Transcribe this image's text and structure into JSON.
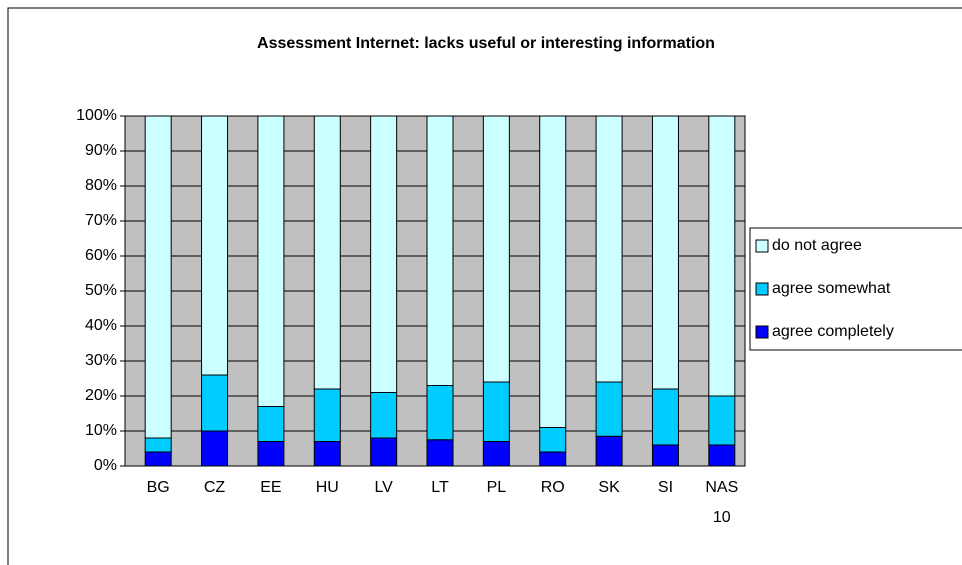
{
  "chart_data": {
    "type": "stacked_bar",
    "title": "Assessment Internet: lacks useful or interesting information",
    "categories": [
      "BG",
      "CZ",
      "EE",
      "HU",
      "LV",
      "LT",
      "PL",
      "RO",
      "SK",
      "SI",
      "NAS 10"
    ],
    "series": [
      {
        "name": "agree completely",
        "color": "#0000ff",
        "values": [
          4,
          10,
          7,
          7,
          8,
          7.5,
          7,
          4,
          8.5,
          6,
          6
        ]
      },
      {
        "name": "agree somewhat",
        "color": "#00ccff",
        "values": [
          4,
          16,
          10,
          15,
          13,
          15.5,
          17,
          7,
          15.5,
          16,
          14
        ]
      },
      {
        "name": "do not agree",
        "color": "#ccffff",
        "values": [
          92,
          74,
          83,
          78,
          79,
          77,
          76,
          89,
          76,
          78,
          80
        ]
      }
    ],
    "ylim": [
      0,
      100
    ],
    "yticks": [
      {
        "value": 0,
        "label": "0%"
      },
      {
        "value": 10,
        "label": "10%"
      },
      {
        "value": 20,
        "label": "20%"
      },
      {
        "value": 30,
        "label": "30%"
      },
      {
        "value": 40,
        "label": "40%"
      },
      {
        "value": 50,
        "label": "50%"
      },
      {
        "value": 60,
        "label": "60%"
      },
      {
        "value": 70,
        "label": "70%"
      },
      {
        "value": 80,
        "label": "80%"
      },
      {
        "value": 90,
        "label": "90%"
      },
      {
        "value": 100,
        "label": "100%"
      }
    ],
    "grid": true,
    "legend": "right"
  }
}
